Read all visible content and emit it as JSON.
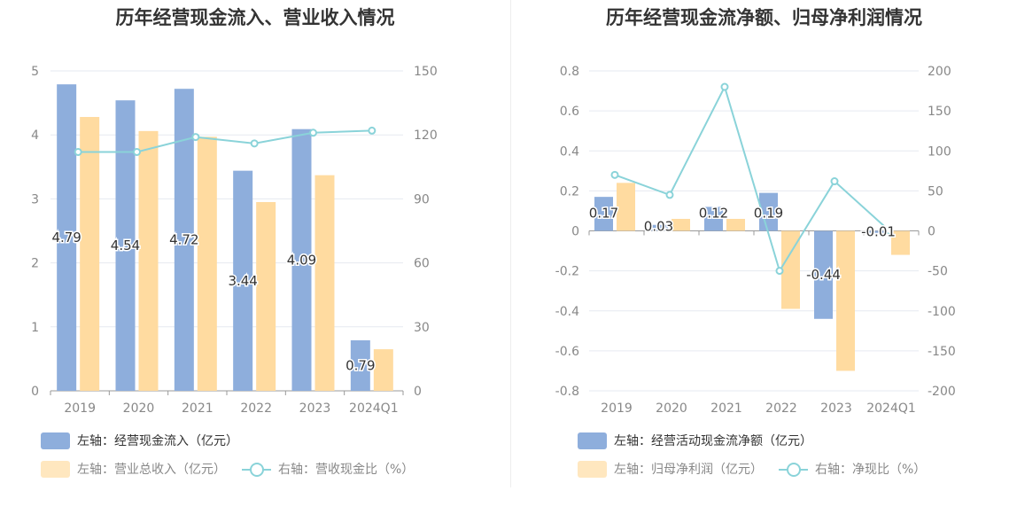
{
  "charts": [
    {
      "title": "历年经营现金流入、营业收入情况",
      "legend": [
        {
          "label": "左轴：经营现金流入（亿元）",
          "color": "#8eaedc"
        },
        {
          "label": "左轴：营业总收入（亿元）",
          "color": "#ffdba0"
        },
        {
          "label": "右轴：营收现金比（%）",
          "color": "#8ad3d9"
        }
      ]
    },
    {
      "title": "历年经营现金流净额、归母净利润情况",
      "legend": [
        {
          "label": "左轴：经营活动现金流净额（亿元）",
          "color": "#8eaedc"
        },
        {
          "label": "左轴：归母净利润（亿元）",
          "color": "#ffdba0"
        },
        {
          "label": "右轴：净现比（%）",
          "color": "#8ad3d9"
        }
      ]
    }
  ],
  "chart_data": [
    {
      "type": "bar",
      "title": "历年经营现金流入、营业收入情况",
      "categories": [
        "2019",
        "2020",
        "2021",
        "2022",
        "2023",
        "2024Q1"
      ],
      "y_left": {
        "min": 0,
        "max": 5,
        "ticks": [
          "0",
          "1",
          "2",
          "3",
          "4",
          "5"
        ]
      },
      "y_right": {
        "min": 0,
        "max": 150,
        "ticks": [
          "0",
          "30",
          "60",
          "90",
          "120",
          "150"
        ]
      },
      "series": [
        {
          "name": "左轴：经营现金流入（亿元）",
          "kind": "bar",
          "axis": "left",
          "color": "#8eaedc",
          "values": [
            4.79,
            4.54,
            4.72,
            3.44,
            4.09,
            0.79
          ],
          "labels": [
            "4.79",
            "4.54",
            "4.72",
            "3.44",
            "4.09",
            "0.79"
          ]
        },
        {
          "name": "左轴：营业总收入（亿元）",
          "kind": "bar",
          "axis": "left",
          "color": "#ffdba0",
          "values": [
            4.28,
            4.06,
            3.97,
            2.95,
            3.37,
            0.65
          ]
        },
        {
          "name": "右轴：营收现金比（%）",
          "kind": "line",
          "axis": "right",
          "color": "#8ad3d9",
          "values": [
            112,
            112,
            119,
            116,
            121,
            122
          ]
        }
      ],
      "grid": true,
      "legend_position": "bottom-left"
    },
    {
      "type": "bar",
      "title": "历年经营现金流净额、归母净利润情况",
      "categories": [
        "2019",
        "2020",
        "2021",
        "2022",
        "2023",
        "2024Q1"
      ],
      "y_left": {
        "min": -0.8,
        "max": 0.8,
        "ticks": [
          "-0.8",
          "-0.6",
          "-0.4",
          "-0.2",
          "0",
          "0.2",
          "0.4",
          "0.6",
          "0.8"
        ]
      },
      "y_right": {
        "min": -200,
        "max": 200,
        "ticks": [
          "-200",
          "-150",
          "-100",
          "-50",
          "0",
          "50",
          "100",
          "150",
          "200"
        ]
      },
      "series": [
        {
          "name": "左轴：经营活动现金流净额（亿元）",
          "kind": "bar",
          "axis": "left",
          "color": "#8eaedc",
          "values": [
            0.17,
            0.03,
            0.12,
            0.19,
            -0.44,
            -0.01
          ],
          "labels": [
            "0.17",
            "0.03",
            "0.12",
            "0.19",
            "-0.44",
            "-0.01"
          ]
        },
        {
          "name": "左轴：归母净利润（亿元）",
          "kind": "bar",
          "axis": "left",
          "color": "#ffdba0",
          "values": [
            0.24,
            0.06,
            0.06,
            -0.39,
            -0.7,
            -0.12
          ]
        },
        {
          "name": "右轴：净现比（%）",
          "kind": "line",
          "axis": "right",
          "color": "#8ad3d9",
          "values": [
            70,
            45,
            180,
            -50,
            62,
            0
          ]
        }
      ],
      "grid": true,
      "legend_position": "bottom-left"
    }
  ]
}
